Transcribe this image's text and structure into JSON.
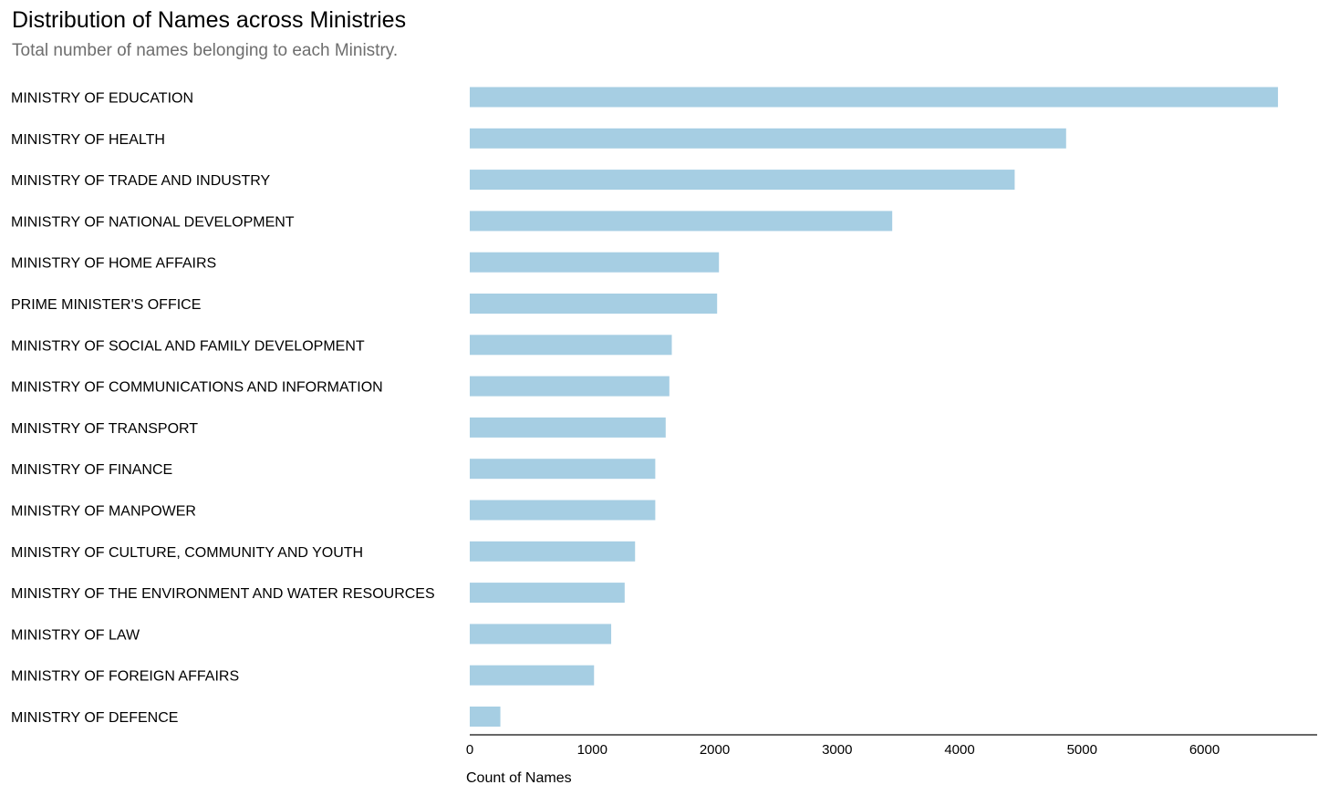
{
  "chart_data": {
    "type": "bar",
    "orientation": "horizontal",
    "title": "Distribution of Names across Ministries",
    "subtitle": "Total number of names belonging to each Ministry.",
    "xlabel": "Count of Names",
    "ylabel": "",
    "categories": [
      "MINISTRY OF EDUCATION",
      "MINISTRY OF HEALTH",
      "MINISTRY OF TRADE AND INDUSTRY",
      "MINISTRY OF NATIONAL DEVELOPMENT",
      "MINISTRY OF HOME AFFAIRS",
      "PRIME MINISTER'S OFFICE",
      "MINISTRY OF SOCIAL AND FAMILY DEVELOPMENT",
      "MINISTRY OF COMMUNICATIONS AND INFORMATION",
      "MINISTRY OF TRANSPORT",
      "MINISTRY OF FINANCE",
      "MINISTRY OF MANPOWER",
      "MINISTRY OF CULTURE, COMMUNITY AND YOUTH",
      "MINISTRY OF THE ENVIRONMENT AND WATER RESOURCES",
      "MINISTRY OF LAW",
      "MINISTRY OF FOREIGN AFFAIRS",
      "MINISTRY OF DEFENCE"
    ],
    "values": [
      6600,
      4870,
      4450,
      3450,
      2035,
      2020,
      1650,
      1630,
      1600,
      1515,
      1515,
      1350,
      1265,
      1155,
      1015,
      250
    ],
    "xlim": [
      0,
      6920
    ],
    "xticks": [
      0,
      1000,
      2000,
      3000,
      4000,
      5000,
      6000
    ],
    "grid": false,
    "bar_color": "#a6cee3",
    "axis_color": "#666666"
  }
}
